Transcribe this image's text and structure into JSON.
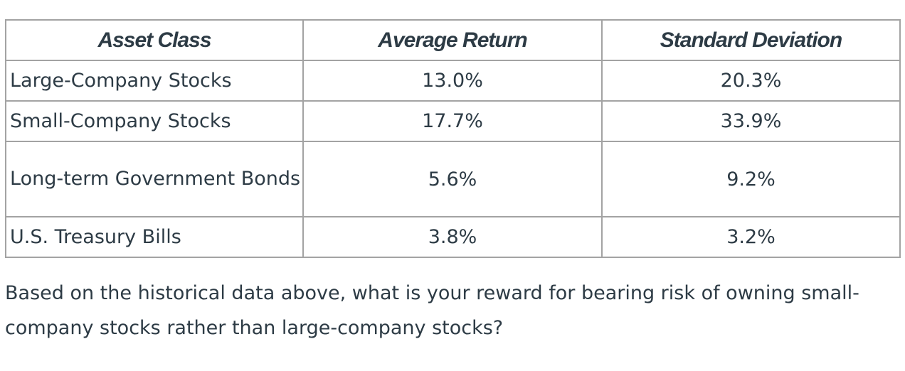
{
  "table": {
    "headers": [
      "Asset Class",
      "Average Return",
      "Standard Deviation"
    ],
    "rows": [
      {
        "asset": "Large-Company Stocks",
        "average_return": "13.0%",
        "std_dev": "20.3%"
      },
      {
        "asset": "Small-Company Stocks",
        "average_return": "17.7%",
        "std_dev": "33.9%"
      },
      {
        "asset": "Long-term Government Bonds",
        "average_return": "5.6%",
        "std_dev": "9.2%"
      },
      {
        "asset": "U.S. Treasury Bills",
        "average_return": "3.8%",
        "std_dev": "3.2%"
      }
    ]
  },
  "question": "Based on the historical data above, what is your reward for bearing risk of owning small-company stocks rather than large-company stocks?",
  "colors": {
    "text": "#2d3b45",
    "border": "#a3a3a3"
  }
}
